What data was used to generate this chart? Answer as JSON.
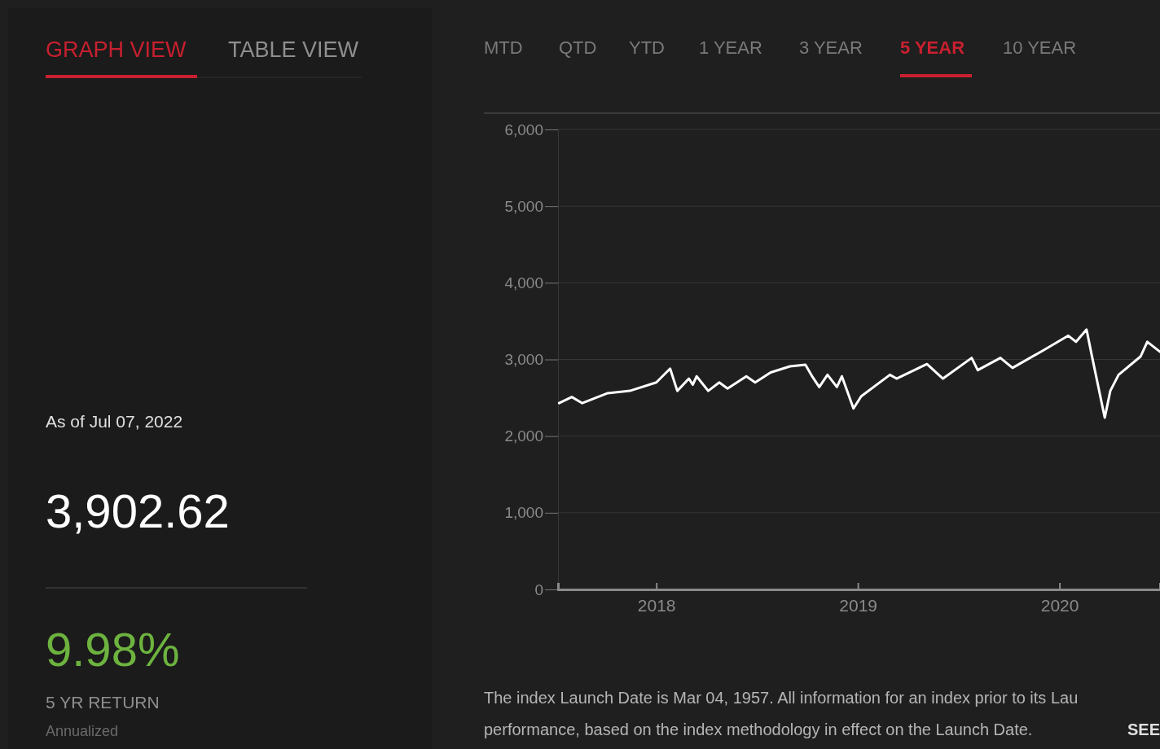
{
  "chart_data": {
    "type": "line",
    "x": [
      "2017-07-09",
      "2017-08-01",
      "2017-08-20",
      "2017-10-05",
      "2017-11-14",
      "2018-01-01",
      "2018-01-26",
      "2018-02-08",
      "2018-03-01",
      "2018-03-08",
      "2018-03-15",
      "2018-04-05",
      "2018-04-25",
      "2018-05-10",
      "2018-06-13",
      "2018-06-29",
      "2018-07-27",
      "2018-08-31",
      "2018-09-28",
      "2018-10-11",
      "2018-10-23",
      "2018-11-07",
      "2018-11-24",
      "2018-12-03",
      "2018-12-24",
      "2019-01-07",
      "2019-02-28",
      "2019-03-12",
      "2019-05-06",
      "2019-06-04",
      "2019-07-26",
      "2019-08-06",
      "2019-09-16",
      "2019-10-08",
      "2019-12-03",
      "2020-01-17",
      "2020-01-31",
      "2020-02-19",
      "2020-02-28",
      "2020-03-23",
      "2020-04-02",
      "2020-04-17",
      "2020-05-27",
      "2020-06-08",
      "2020-07-01"
    ],
    "series": [
      {
        "color": "#ffffff",
        "values": [
          2430,
          2510,
          2430,
          2560,
          2590,
          2700,
          2880,
          2590,
          2750,
          2670,
          2780,
          2590,
          2700,
          2620,
          2780,
          2700,
          2830,
          2910,
          2930,
          2770,
          2640,
          2800,
          2640,
          2780,
          2360,
          2520,
          2800,
          2750,
          2940,
          2750,
          3020,
          2860,
          3020,
          2890,
          3120,
          3310,
          3230,
          3390,
          3070,
          2240,
          2590,
          2800,
          3040,
          3230,
          3100
        ]
      }
    ],
    "xlim": [
      "2017-07-07",
      "2020-07-01"
    ],
    "xticks": [
      {
        "value": "2018-01-01",
        "label": "2018"
      },
      {
        "value": "2019-01-01",
        "label": "2019"
      },
      {
        "value": "2020-01-01",
        "label": "2020"
      }
    ],
    "ylim": [
      0,
      6000
    ],
    "yticks": [
      {
        "value": 0,
        "label": "0"
      },
      {
        "value": 1000,
        "label": "1,000"
      },
      {
        "value": 2000,
        "label": "2,000"
      },
      {
        "value": 3000,
        "label": "3,000"
      },
      {
        "value": 4000,
        "label": "4,000"
      },
      {
        "value": 5000,
        "label": "5,000"
      },
      {
        "value": 6000,
        "label": "6,000"
      }
    ],
    "grid": "y",
    "marker": "none",
    "line_style": "solid",
    "legend": false,
    "annotations": [
      "GRAPH VIEW",
      "TABLE VIEW",
      "MTD",
      "QTD",
      "YTD",
      "1 YEAR",
      "3 YEAR",
      "5 YEAR",
      "10 YEAR",
      "As of Jul 07, 2022",
      "3,902.62",
      "9.98%",
      "5 YR RETURN",
      "Annualized",
      "The index Launch Date is Mar 04, 1957. All information for an index prior to its Lau",
      "performance, based on the index methodology in effect on the Launch Date.",
      "SEE"
    ]
  }
}
